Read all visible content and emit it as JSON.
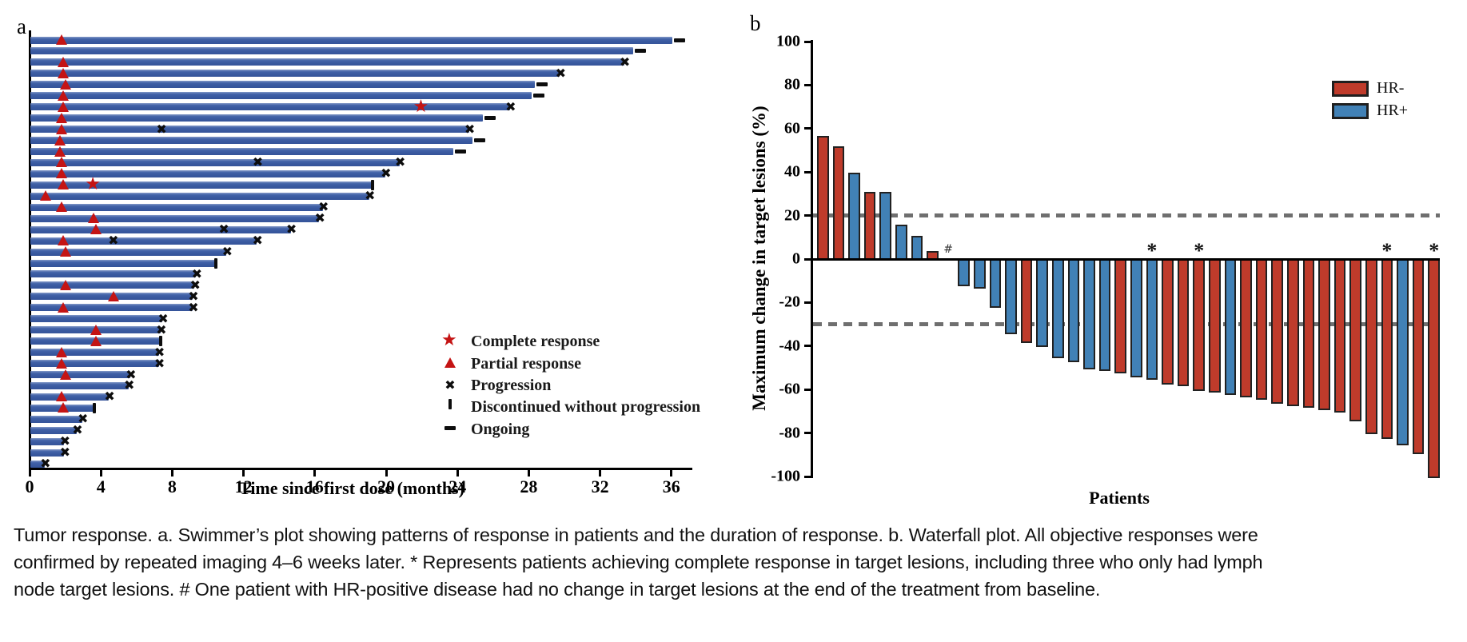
{
  "caption": {
    "lines": [
      "Tumor response. a. Swimmer’s plot showing patterns of response in patients and the duration of response. b. Waterfall plot. All objective responses were",
      "confirmed by repeated imaging 4–6 weeks later. * Represents patients achieving complete response in target lesions, including three who only had lymph",
      "node target lesions. # One patient with HR-positive disease had no change in target lesions at the end of the treatment from baseline."
    ]
  },
  "colors": {
    "swimmer_bar_blue": "#3a5aa0",
    "marker_red": "#c41414",
    "marker_black": "#0d0d0d",
    "hr_neg_red": "#bf3b2b",
    "hr_pos_blue": "#4181b6",
    "bar_outline": "#212121",
    "dashed_gray": "#6f6f6f"
  },
  "chart_data": [
    {
      "type": "swimmer",
      "panel_label": "a",
      "xlabel": "Time since first dose (months)",
      "x_ticks": [
        0,
        4,
        8,
        12,
        16,
        20,
        24,
        28,
        32,
        36
      ],
      "xlim": [
        0,
        37.5
      ],
      "x_unit": "months",
      "legend": [
        {
          "symbol": "star",
          "label": "Complete response"
        },
        {
          "symbol": "triangle",
          "label": "Partial response"
        },
        {
          "symbol": "cross",
          "label": "Progression"
        },
        {
          "symbol": "vbar",
          "label": "Discontinued without progression"
        },
        {
          "symbol": "dash",
          "label": "Ongoing"
        }
      ],
      "marker_meaning": {
        "triangle": "partial response time",
        "star": "complete response time",
        "cross": "progression",
        "vbar": "discontinued without progression",
        "dash": "ongoing"
      },
      "patients": [
        {
          "duration": 36.0,
          "end": "ongoing",
          "pr": 1.8
        },
        {
          "duration": 33.8,
          "end": "ongoing"
        },
        {
          "duration": 33.3,
          "end": "progression",
          "pr": 1.9
        },
        {
          "duration": 29.7,
          "end": "progression",
          "pr": 1.9
        },
        {
          "duration": 28.3,
          "end": "ongoing",
          "pr": 2.0
        },
        {
          "duration": 28.1,
          "end": "ongoing",
          "pr": 1.9
        },
        {
          "duration": 26.9,
          "end": "progression",
          "pr": 1.9,
          "cr": 22.0
        },
        {
          "duration": 25.4,
          "end": "ongoing",
          "pr": 1.8
        },
        {
          "duration": 24.6,
          "end": "progression",
          "pr": 1.8,
          "x": [
            7.4
          ]
        },
        {
          "duration": 24.8,
          "end": "ongoing",
          "pr": 1.7
        },
        {
          "duration": 23.7,
          "end": "ongoing",
          "pr": 1.7
        },
        {
          "duration": 20.7,
          "end": "progression",
          "pr": 1.8,
          "x": [
            12.8
          ]
        },
        {
          "duration": 19.9,
          "end": "progression",
          "pr": 1.8
        },
        {
          "duration": 19.2,
          "end": "discontinued",
          "pr": 1.9,
          "cr": 3.6
        },
        {
          "duration": 19.0,
          "end": "progression",
          "pr": 0.9
        },
        {
          "duration": 16.4,
          "end": "progression",
          "pr": 1.8
        },
        {
          "duration": 16.2,
          "end": "progression",
          "pr": 3.6
        },
        {
          "duration": 14.6,
          "end": "progression",
          "pr": 3.7,
          "x": [
            10.9
          ]
        },
        {
          "duration": 12.7,
          "end": "progression",
          "pr": 1.9,
          "x": [
            4.7
          ]
        },
        {
          "duration": 11.0,
          "end": "progression",
          "pr": 2.0
        },
        {
          "duration": 10.4,
          "end": "discontinued"
        },
        {
          "duration": 9.3,
          "end": "progression"
        },
        {
          "duration": 9.2,
          "end": "progression",
          "pr": 2.0
        },
        {
          "duration": 9.1,
          "end": "progression",
          "pr": 4.7
        },
        {
          "duration": 9.1,
          "end": "progression",
          "pr": 1.9
        },
        {
          "duration": 7.4,
          "end": "progression"
        },
        {
          "duration": 7.3,
          "end": "progression",
          "pr": 3.7
        },
        {
          "duration": 7.3,
          "end": "discontinued",
          "pr": 3.7
        },
        {
          "duration": 7.2,
          "end": "progression",
          "pr": 1.8
        },
        {
          "duration": 7.2,
          "end": "progression",
          "pr": 1.8
        },
        {
          "duration": 5.6,
          "end": "progression",
          "pr": 2.0
        },
        {
          "duration": 5.5,
          "end": "progression"
        },
        {
          "duration": 4.4,
          "end": "progression",
          "pr": 1.8
        },
        {
          "duration": 3.6,
          "end": "discontinued",
          "pr": 1.9
        },
        {
          "duration": 2.9,
          "end": "progression"
        },
        {
          "duration": 2.6,
          "end": "progression"
        },
        {
          "duration": 1.9,
          "end": "progression"
        },
        {
          "duration": 1.9,
          "end": "progression"
        },
        {
          "duration": 0.8,
          "end": "progression"
        }
      ]
    },
    {
      "type": "waterfall-bar",
      "panel_label": "b",
      "ylabel": "Maximum change in target lesions (%)",
      "xlabel": "Patients",
      "ylim": [
        -100,
        100
      ],
      "y_ticks": [
        100,
        80,
        60,
        40,
        20,
        0,
        -20,
        -40,
        -60,
        -80,
        -100
      ],
      "reference_lines": [
        20,
        -30
      ],
      "legend": [
        {
          "label": "HR-",
          "color": "#bf3b2b"
        },
        {
          "label": "HR+",
          "color": "#4181b6"
        }
      ],
      "annotations_meaning": {
        "*": "complete response in target lesions",
        "#": "no change from baseline"
      },
      "patients": [
        {
          "value": 56,
          "group": "HR-"
        },
        {
          "value": 51,
          "group": "HR-"
        },
        {
          "value": 39,
          "group": "HR+"
        },
        {
          "value": 30,
          "group": "HR-"
        },
        {
          "value": 30,
          "group": "HR+"
        },
        {
          "value": 15,
          "group": "HR+"
        },
        {
          "value": 10,
          "group": "HR+"
        },
        {
          "value": 3,
          "group": "HR-"
        },
        {
          "value": 0,
          "group": "HR+",
          "annotation": "#"
        },
        {
          "value": -12,
          "group": "HR+"
        },
        {
          "value": -13,
          "group": "HR+"
        },
        {
          "value": -22,
          "group": "HR+"
        },
        {
          "value": -34,
          "group": "HR+"
        },
        {
          "value": -38,
          "group": "HR-"
        },
        {
          "value": -40,
          "group": "HR+"
        },
        {
          "value": -45,
          "group": "HR+"
        },
        {
          "value": -47,
          "group": "HR+"
        },
        {
          "value": -50,
          "group": "HR+"
        },
        {
          "value": -51,
          "group": "HR+"
        },
        {
          "value": -52,
          "group": "HR-"
        },
        {
          "value": -54,
          "group": "HR+"
        },
        {
          "value": -55,
          "group": "HR+",
          "annotation": "*"
        },
        {
          "value": -57,
          "group": "HR-"
        },
        {
          "value": -58,
          "group": "HR-"
        },
        {
          "value": -60,
          "group": "HR-",
          "annotation": "*"
        },
        {
          "value": -61,
          "group": "HR-"
        },
        {
          "value": -62,
          "group": "HR+"
        },
        {
          "value": -63,
          "group": "HR-"
        },
        {
          "value": -64,
          "group": "HR-"
        },
        {
          "value": -66,
          "group": "HR-"
        },
        {
          "value": -67,
          "group": "HR-"
        },
        {
          "value": -68,
          "group": "HR-"
        },
        {
          "value": -69,
          "group": "HR-"
        },
        {
          "value": -70,
          "group": "HR-"
        },
        {
          "value": -74,
          "group": "HR-"
        },
        {
          "value": -80,
          "group": "HR-"
        },
        {
          "value": -82,
          "group": "HR-",
          "annotation": "*"
        },
        {
          "value": -85,
          "group": "HR+"
        },
        {
          "value": -89,
          "group": "HR-"
        },
        {
          "value": -100,
          "group": "HR-",
          "annotation": "*"
        }
      ]
    }
  ]
}
